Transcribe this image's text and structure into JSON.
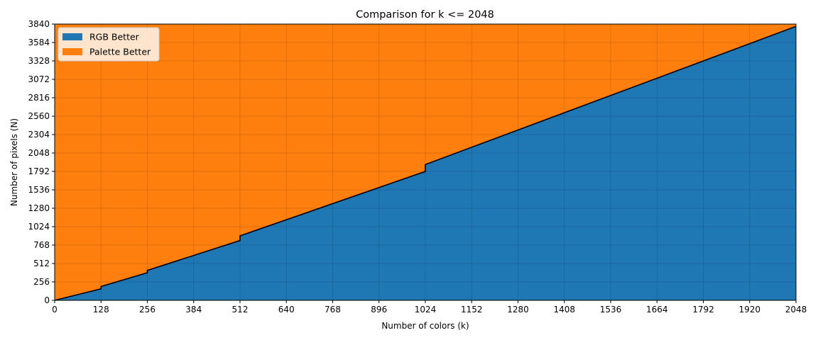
{
  "chart_data": {
    "type": "area",
    "title": "Comparison for k <= 2048",
    "xlabel": "Number of colors (k)",
    "ylabel": "Number of pixels (N)",
    "xlim": [
      0,
      2048
    ],
    "ylim": [
      0,
      3840
    ],
    "xticks": [
      0,
      128,
      256,
      384,
      512,
      640,
      768,
      896,
      1024,
      1152,
      1280,
      1408,
      1536,
      1664,
      1792,
      1920,
      2048
    ],
    "yticks": [
      0,
      256,
      512,
      768,
      1024,
      1280,
      1536,
      1792,
      2048,
      2304,
      2560,
      2816,
      3072,
      3328,
      3584,
      3840
    ],
    "grid": true,
    "legend": "top-left",
    "series": [
      {
        "name": "RGB Better",
        "color": "#1f77b4",
        "region": "below-boundary"
      },
      {
        "name": "Palette Better",
        "color": "#ff7f0e",
        "region": "above-boundary"
      }
    ],
    "boundary": {
      "color": "#000000",
      "x": [
        0,
        1,
        2,
        4,
        8,
        16,
        32,
        64,
        128,
        128,
        256,
        256,
        512,
        512,
        1024,
        1024,
        2048
      ],
      "y": [
        0,
        1.5,
        2.5,
        5,
        10,
        20,
        40,
        80,
        160,
        192,
        384,
        416,
        832,
        896,
        1792,
        1888,
        3808
      ]
    }
  }
}
